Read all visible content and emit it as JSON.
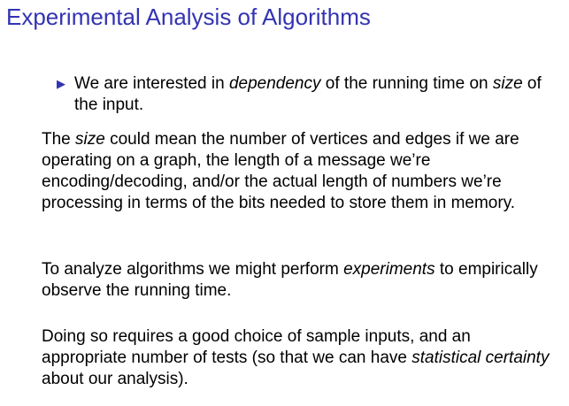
{
  "slide": {
    "title": "Experimental Analysis of Algorithms",
    "accent_color": "#3333b3",
    "bullet_icon": "triangle-right-icon",
    "bullet": {
      "t1": "We are interested in ",
      "em1": "dependency",
      "t2": " of the running time on ",
      "em2": "size",
      "t3": " of the input."
    },
    "para1": {
      "t1": "The ",
      "em1": "size",
      "t2": " could mean the number of vertices and edges if we are operating on a graph, the length of a message we’re encoding/decoding, and/or the actual length of numbers we’re processing in terms of the bits needed to store them in memory."
    },
    "para2": {
      "t1": "To analyze algorithms we might perform ",
      "em1": "experiments",
      "t2": " to empirically observe the running time."
    },
    "para3": {
      "t1": "Doing so requires a good choice of sample inputs, and an appropriate number of tests (so that we can have ",
      "em1": "statistical certainty",
      "t2": " about our analysis)."
    }
  }
}
